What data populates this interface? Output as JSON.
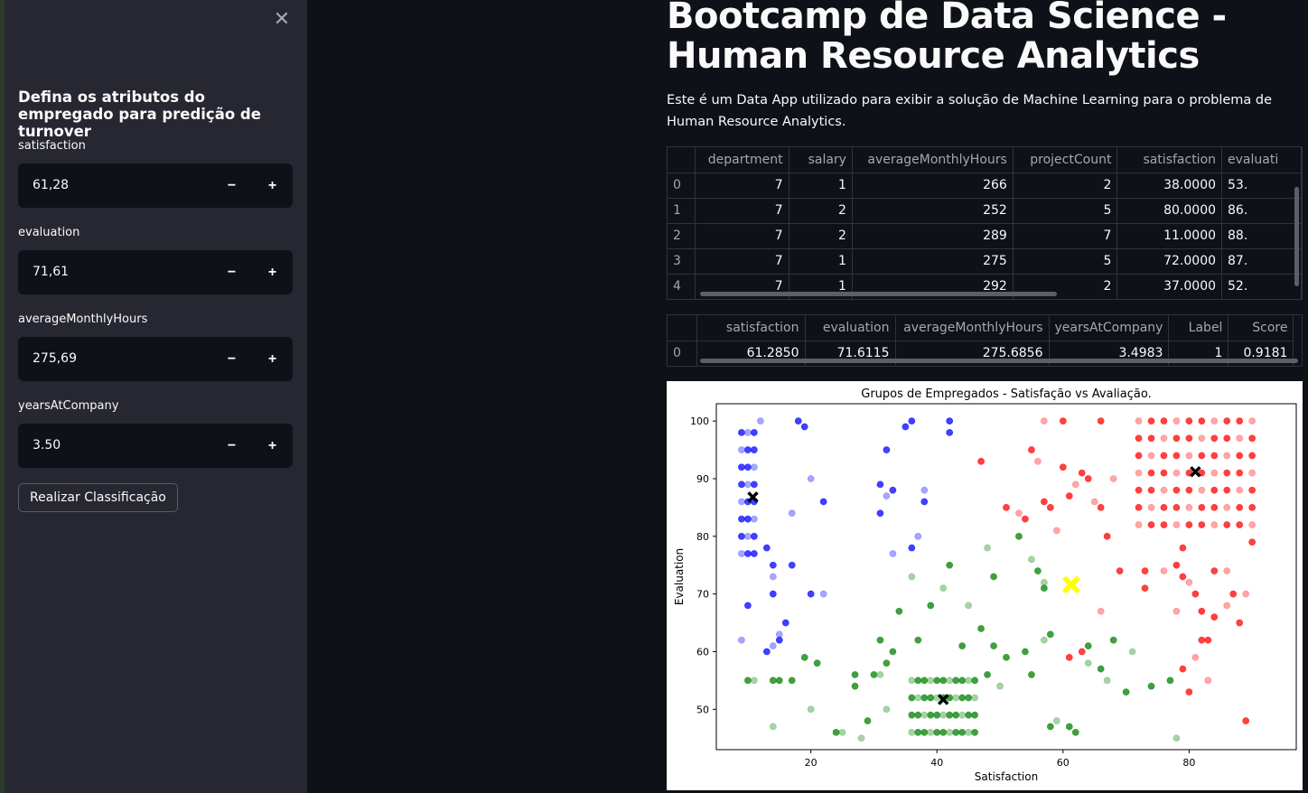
{
  "sidebar": {
    "close_icon": "✕",
    "title": "Defina os atributos do empregado para predição de turnover",
    "fields": [
      {
        "label": "satisfaction",
        "value": "61,28"
      },
      {
        "label": "evaluation",
        "value": "71,61"
      },
      {
        "label": "averageMonthlyHours",
        "value": "275,69"
      },
      {
        "label": "yearsAtCompany",
        "value": "3.50"
      }
    ],
    "minus": "−",
    "plus": "+",
    "submit_label": "Realizar Classificação"
  },
  "main": {
    "title": "Bootcamp de Data Science - Human Resource Analytics",
    "description": "Este é um Data App utilizado para exibir a solução de Machine Learning para o problema de Human Resource Analytics."
  },
  "table1": {
    "columns": [
      "",
      "department",
      "salary",
      "averageMonthlyHours",
      "projectCount",
      "satisfaction",
      "evaluati"
    ],
    "rows": [
      [
        "0",
        "7",
        "1",
        "266",
        "2",
        "38.0000",
        "53."
      ],
      [
        "1",
        "7",
        "2",
        "252",
        "5",
        "80.0000",
        "86."
      ],
      [
        "2",
        "7",
        "2",
        "289",
        "7",
        "11.0000",
        "88."
      ],
      [
        "3",
        "7",
        "1",
        "275",
        "5",
        "72.0000",
        "87."
      ],
      [
        "4",
        "7",
        "1",
        "292",
        "2",
        "37.0000",
        "52."
      ]
    ]
  },
  "table2": {
    "columns": [
      "",
      "satisfaction",
      "evaluation",
      "averageMonthlyHours",
      "yearsAtCompany",
      "Label",
      "Score"
    ],
    "rows": [
      [
        "0",
        "61.2850",
        "71.6115",
        "275.6856",
        "3.4983",
        "1",
        "0.9181"
      ]
    ]
  },
  "chart_data": {
    "type": "scatter",
    "title": "Grupos de Empregados - Satisfação vs Avaliação.",
    "xlabel": "Satisfaction",
    "ylabel": "Evaluation",
    "xlim": [
      5,
      97
    ],
    "ylim": [
      43,
      103
    ],
    "xticks": [
      20,
      40,
      60,
      80
    ],
    "yticks": [
      50,
      60,
      70,
      80,
      90,
      100
    ],
    "colors": {
      "cluster0": "#0000ff",
      "cluster1": "#008000",
      "cluster2": "#ff0000",
      "centroid": "#000000",
      "employee": "#ffff00"
    },
    "series": [
      {
        "color": "blue",
        "points": [
          [
            9,
            77
          ],
          [
            9,
            80
          ],
          [
            9,
            83
          ],
          [
            9,
            86
          ],
          [
            9,
            89
          ],
          [
            9,
            92
          ],
          [
            9,
            95
          ],
          [
            9,
            98
          ],
          [
            10,
            77
          ],
          [
            10,
            80
          ],
          [
            10,
            83
          ],
          [
            10,
            86
          ],
          [
            10,
            89
          ],
          [
            10,
            92
          ],
          [
            10,
            95
          ],
          [
            10,
            98
          ],
          [
            11,
            77
          ],
          [
            11,
            80
          ],
          [
            11,
            83
          ],
          [
            11,
            86
          ],
          [
            11,
            89
          ],
          [
            11,
            92
          ],
          [
            11,
            95
          ],
          [
            11,
            98
          ],
          [
            12,
            100
          ],
          [
            13,
            78
          ],
          [
            14,
            75
          ],
          [
            14,
            73
          ],
          [
            14,
            70
          ],
          [
            15,
            62
          ],
          [
            14,
            61
          ],
          [
            16,
            65
          ],
          [
            17,
            75
          ],
          [
            17,
            84
          ],
          [
            18,
            100
          ],
          [
            19,
            99
          ],
          [
            20,
            90
          ],
          [
            20,
            70
          ],
          [
            22,
            86
          ],
          [
            22,
            70
          ],
          [
            31,
            89
          ],
          [
            32,
            95
          ],
          [
            32,
            87
          ],
          [
            33,
            88
          ],
          [
            31,
            84
          ],
          [
            33,
            77
          ],
          [
            35,
            99
          ],
          [
            36,
            100
          ],
          [
            38,
            88
          ],
          [
            38,
            86
          ],
          [
            36,
            78
          ],
          [
            37,
            80
          ],
          [
            42,
            100
          ],
          [
            42,
            98
          ],
          [
            9,
            62
          ],
          [
            10,
            68
          ],
          [
            13,
            60
          ],
          [
            15,
            63
          ]
        ]
      },
      {
        "color": "green",
        "points": [
          [
            36,
            46
          ],
          [
            36,
            49
          ],
          [
            36,
            52
          ],
          [
            36,
            55
          ],
          [
            37,
            46
          ],
          [
            37,
            49
          ],
          [
            37,
            52
          ],
          [
            37,
            55
          ],
          [
            38,
            46
          ],
          [
            38,
            49
          ],
          [
            38,
            52
          ],
          [
            38,
            55
          ],
          [
            39,
            46
          ],
          [
            39,
            49
          ],
          [
            39,
            52
          ],
          [
            39,
            55
          ],
          [
            40,
            46
          ],
          [
            40,
            49
          ],
          [
            40,
            52
          ],
          [
            40,
            55
          ],
          [
            41,
            46
          ],
          [
            41,
            49
          ],
          [
            41,
            52
          ],
          [
            41,
            55
          ],
          [
            42,
            46
          ],
          [
            42,
            49
          ],
          [
            42,
            52
          ],
          [
            42,
            55
          ],
          [
            43,
            46
          ],
          [
            43,
            49
          ],
          [
            43,
            52
          ],
          [
            43,
            55
          ],
          [
            44,
            46
          ],
          [
            44,
            49
          ],
          [
            44,
            52
          ],
          [
            44,
            55
          ],
          [
            45,
            46
          ],
          [
            45,
            49
          ],
          [
            45,
            52
          ],
          [
            45,
            55
          ],
          [
            46,
            46
          ],
          [
            46,
            49
          ],
          [
            46,
            52
          ],
          [
            46,
            55
          ],
          [
            10,
            55
          ],
          [
            11,
            55
          ],
          [
            14,
            55
          ],
          [
            15,
            55
          ],
          [
            14,
            47
          ],
          [
            17,
            55
          ],
          [
            19,
            59
          ],
          [
            20,
            50
          ],
          [
            21,
            58
          ],
          [
            24,
            46
          ],
          [
            25,
            46
          ],
          [
            27,
            56
          ],
          [
            27,
            54
          ],
          [
            28,
            45
          ],
          [
            29,
            48
          ],
          [
            30,
            56
          ],
          [
            31,
            56
          ],
          [
            31,
            62
          ],
          [
            32,
            58
          ],
          [
            32,
            50
          ],
          [
            33,
            60
          ],
          [
            34,
            67
          ],
          [
            36,
            73
          ],
          [
            37,
            62
          ],
          [
            39,
            68
          ],
          [
            41,
            71
          ],
          [
            42,
            75
          ],
          [
            44,
            61
          ],
          [
            45,
            68
          ],
          [
            47,
            64
          ],
          [
            48,
            56
          ],
          [
            48,
            78
          ],
          [
            49,
            61
          ],
          [
            49,
            73
          ],
          [
            50,
            54
          ],
          [
            51,
            59
          ],
          [
            53,
            80
          ],
          [
            55,
            76
          ],
          [
            56,
            74
          ],
          [
            57,
            71
          ],
          [
            57,
            72
          ],
          [
            55,
            56
          ],
          [
            54,
            60
          ],
          [
            57,
            62
          ],
          [
            58,
            63
          ],
          [
            58,
            47
          ],
          [
            59,
            48
          ],
          [
            61,
            47
          ],
          [
            62,
            46
          ],
          [
            64,
            58
          ],
          [
            64,
            61
          ],
          [
            66,
            57
          ],
          [
            67,
            55
          ],
          [
            68,
            62
          ],
          [
            70,
            53
          ],
          [
            71,
            60
          ],
          [
            74,
            54
          ],
          [
            77,
            55
          ],
          [
            78,
            45
          ]
        ]
      },
      {
        "color": "red",
        "points": [
          [
            72,
            100
          ],
          [
            74,
            100
          ],
          [
            76,
            100
          ],
          [
            78,
            100
          ],
          [
            80,
            100
          ],
          [
            82,
            100
          ],
          [
            84,
            100
          ],
          [
            86,
            100
          ],
          [
            88,
            100
          ],
          [
            90,
            100
          ],
          [
            72,
            97
          ],
          [
            74,
            97
          ],
          [
            76,
            97
          ],
          [
            78,
            97
          ],
          [
            80,
            97
          ],
          [
            82,
            97
          ],
          [
            84,
            97
          ],
          [
            86,
            97
          ],
          [
            88,
            97
          ],
          [
            90,
            97
          ],
          [
            72,
            94
          ],
          [
            74,
            94
          ],
          [
            76,
            94
          ],
          [
            78,
            94
          ],
          [
            80,
            94
          ],
          [
            82,
            94
          ],
          [
            84,
            94
          ],
          [
            86,
            94
          ],
          [
            88,
            94
          ],
          [
            90,
            94
          ],
          [
            72,
            91
          ],
          [
            74,
            91
          ],
          [
            76,
            91
          ],
          [
            78,
            91
          ],
          [
            80,
            91
          ],
          [
            82,
            91
          ],
          [
            84,
            91
          ],
          [
            86,
            91
          ],
          [
            88,
            91
          ],
          [
            90,
            91
          ],
          [
            72,
            88
          ],
          [
            74,
            88
          ],
          [
            76,
            88
          ],
          [
            78,
            88
          ],
          [
            80,
            88
          ],
          [
            82,
            88
          ],
          [
            84,
            88
          ],
          [
            86,
            88
          ],
          [
            88,
            88
          ],
          [
            90,
            88
          ],
          [
            72,
            85
          ],
          [
            74,
            85
          ],
          [
            76,
            85
          ],
          [
            78,
            85
          ],
          [
            80,
            85
          ],
          [
            82,
            85
          ],
          [
            84,
            85
          ],
          [
            86,
            85
          ],
          [
            88,
            85
          ],
          [
            90,
            85
          ],
          [
            72,
            82
          ],
          [
            74,
            82
          ],
          [
            76,
            82
          ],
          [
            78,
            82
          ],
          [
            80,
            82
          ],
          [
            82,
            82
          ],
          [
            84,
            82
          ],
          [
            86,
            82
          ],
          [
            88,
            82
          ],
          [
            90,
            82
          ],
          [
            47,
            93
          ],
          [
            51,
            85
          ],
          [
            53,
            84
          ],
          [
            54,
            83
          ],
          [
            55,
            95
          ],
          [
            56,
            93
          ],
          [
            57,
            86
          ],
          [
            58,
            85
          ],
          [
            59,
            81
          ],
          [
            60,
            92
          ],
          [
            61,
            87
          ],
          [
            62,
            89
          ],
          [
            63,
            91
          ],
          [
            64,
            90
          ],
          [
            65,
            86
          ],
          [
            66,
            85
          ],
          [
            67,
            80
          ],
          [
            57,
            100
          ],
          [
            60,
            100
          ],
          [
            66,
            100
          ],
          [
            68,
            90
          ],
          [
            69,
            74
          ],
          [
            73,
            74
          ],
          [
            76,
            74
          ],
          [
            78,
            75
          ],
          [
            79,
            78
          ],
          [
            80,
            72
          ],
          [
            81,
            70
          ],
          [
            82,
            62
          ],
          [
            83,
            55
          ],
          [
            84,
            74
          ],
          [
            84,
            66
          ],
          [
            86,
            68
          ],
          [
            87,
            70
          ],
          [
            88,
            65
          ],
          [
            89,
            70
          ],
          [
            79,
            57
          ],
          [
            80,
            53
          ],
          [
            81,
            59
          ],
          [
            82,
            67
          ],
          [
            83,
            62
          ],
          [
            86,
            74
          ],
          [
            89,
            48
          ],
          [
            90,
            79
          ],
          [
            78,
            67
          ],
          [
            79,
            73
          ],
          [
            73,
            71
          ],
          [
            66,
            67
          ],
          [
            63,
            60
          ],
          [
            61,
            59
          ]
        ]
      }
    ],
    "centroids": [
      [
        10.8,
        86.8
      ],
      [
        41.0,
        51.7
      ],
      [
        81.0,
        91.2
      ]
    ],
    "employee_point": [
      61.3,
      71.6
    ]
  }
}
